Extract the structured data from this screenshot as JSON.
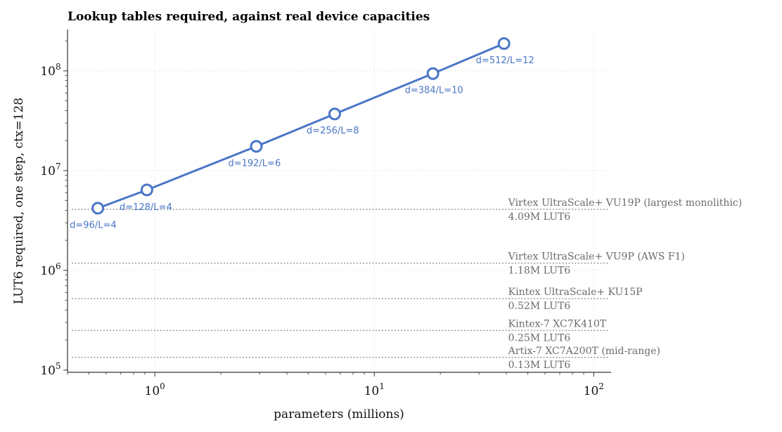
{
  "chart_data": {
    "type": "line",
    "title": "Lookup tables required, against real device capacities",
    "xlabel": "parameters (millions)",
    "ylabel": "LUT6 required, one step, ctx=128",
    "x_scale": "log",
    "y_scale": "log",
    "xlim": [
      0.4,
      120
    ],
    "ylim": [
      95000,
      260000000
    ],
    "x_ticks": [
      {
        "value": 1,
        "base": "10",
        "exp": "0"
      },
      {
        "value": 10,
        "base": "10",
        "exp": "1"
      },
      {
        "value": 100,
        "base": "10",
        "exp": "2"
      }
    ],
    "y_ticks": [
      {
        "value": 100000,
        "base": "10",
        "exp": "5"
      },
      {
        "value": 1000000,
        "base": "10",
        "exp": "6"
      },
      {
        "value": 10000000,
        "base": "10",
        "exp": "7"
      },
      {
        "value": 100000000,
        "base": "10",
        "exp": "8"
      }
    ],
    "grid": true,
    "series": [
      {
        "color": "#4a76c6",
        "points": [
          {
            "x": 0.55,
            "y": 4200000,
            "label": "d=96/L=4"
          },
          {
            "x": 0.92,
            "y": 6400000,
            "label": "d=128/L=4"
          },
          {
            "x": 2.9,
            "y": 17500000,
            "label": "d=192/L=6"
          },
          {
            "x": 6.6,
            "y": 37000000,
            "label": "d=256/L=8"
          },
          {
            "x": 18.5,
            "y": 94000000,
            "label": "d=384/L=10"
          },
          {
            "x": 39,
            "y": 188000000,
            "label": "d=512/L=12"
          }
        ]
      }
    ],
    "reference_lines": [
      {
        "name": "Virtex UltraScale+ VU19P (largest monolithic)",
        "value": 4090000,
        "caption": "4.09M LUT6"
      },
      {
        "name": "Virtex UltraScale+ VU9P (AWS F1)",
        "value": 1180000,
        "caption": "1.18M LUT6"
      },
      {
        "name": "Kintex UltraScale+ KU15P",
        "value": 520000,
        "caption": "0.52M LUT6"
      },
      {
        "name": "Kintex-7 XC7K410T",
        "value": 250000,
        "caption": "0.25M LUT6"
      },
      {
        "name": "Artix-7 XC7A200T (mid-range)",
        "value": 134000,
        "caption": "0.13M LUT6"
      }
    ],
    "colors": {
      "series": "#4a76c6",
      "reference": "#999999",
      "reference_text": "#6b6b6b",
      "grid": "#e6e6e6"
    }
  }
}
